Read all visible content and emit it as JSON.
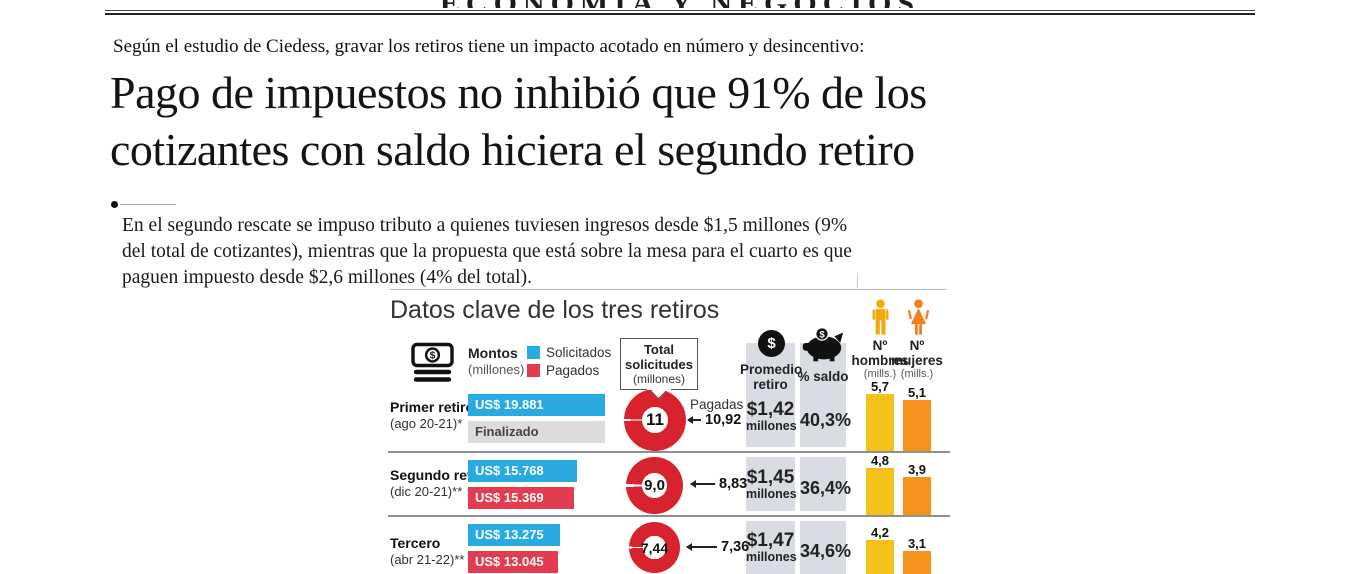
{
  "masthead": {
    "section_title": "ECONOMÍA Y NEGOCIOS"
  },
  "article": {
    "kicker": "Según el estudio de Ciedess, gravar los retiros tiene un impacto acotado en número y desincentivo:",
    "headline_line1": "Pago de impuestos no inhibió que 91% de los",
    "headline_line2": "cotizantes con saldo hiciera el segundo retiro",
    "deck": "En el segundo rescate se impuso tributo a quienes tuviesen ingresos desde $1,5 millones (9% del total de cotizantes), mientras que la propuesta que está sobre la mesa para el cuarto es que paguen impuesto desde $2,6 millones (4% del total)."
  },
  "infographic": {
    "title": "Datos clave de los tres retiros",
    "legend": {
      "montos_label": "Montos",
      "montos_sub": "(millones)",
      "solicitados": "Solicitados",
      "pagados": "Pagados"
    },
    "callout": {
      "line1": "Total",
      "line2": "solicitudes",
      "line3": "(millones)"
    },
    "columns": {
      "promedio_line1": "Promedio",
      "promedio_line2": "retiro",
      "saldo": "% saldo",
      "hombres_no": "Nº",
      "hombres": "hombres",
      "hombres_sub": "(mills.)",
      "mujeres_no": "Nº",
      "mujeres": "mujeres",
      "mujeres_sub": "(mills.)"
    },
    "rows": [
      {
        "name": "Primer retiro",
        "period": "(ago 20-21)*",
        "solicitados_label": "US$ 19.881",
        "solicitados_num": 19881,
        "pagados_label": "Finalizado",
        "pagados_num": null,
        "pagados_is_finalizado": true,
        "total_label": "11",
        "total_num": 11,
        "pagadas_caption": "Pagadas",
        "pagadas_label": "10,92",
        "pagadas_num": 10.92,
        "promedio": "$1,42",
        "promedio_sub": "millones",
        "saldo": "40,3%",
        "hombres_label": "5,7",
        "hombres_num": 5.7,
        "mujeres_label": "5,1",
        "mujeres_num": 5.1
      },
      {
        "name": "Segundo retiro",
        "period": "(dic 20-21)**",
        "solicitados_label": "US$ 15.768",
        "solicitados_num": 15768,
        "pagados_label": "US$ 15.369",
        "pagados_num": 15369,
        "pagados_is_finalizado": false,
        "total_label": "9,0",
        "total_num": 9.0,
        "pagadas_caption": "",
        "pagadas_label": "8,83",
        "pagadas_num": 8.83,
        "promedio": "$1,45",
        "promedio_sub": "millones",
        "saldo": "36,4%",
        "hombres_label": "4,8",
        "hombres_num": 4.8,
        "mujeres_label": "3,9",
        "mujeres_num": 3.9
      },
      {
        "name": "Tercero",
        "period": "(abr 21-22)**",
        "solicitados_label": "US$ 13.275",
        "solicitados_num": 13275,
        "pagados_label": "US$ 13.045",
        "pagados_num": 13045,
        "pagados_is_finalizado": false,
        "total_label": "7,44",
        "total_num": 7.44,
        "pagadas_caption": "",
        "pagadas_label": "7,36",
        "pagadas_num": 7.36,
        "promedio": "$1,47",
        "promedio_sub": "millones",
        "saldo": "34,6%",
        "hombres_label": "4,2",
        "hombres_num": 4.2,
        "mujeres_label": "3,1",
        "mujeres_num": 3.1
      }
    ],
    "colors": {
      "solicitados": "#29abe2",
      "pagados": "#e23c4e",
      "donut": "#d8232f",
      "hombres_bar": "#f3c117",
      "mujeres_bar": "#f6921e",
      "hombres_icon": "#f2a90d",
      "mujeres_icon": "#f57f1e",
      "band": "#d9dde3"
    }
  },
  "chart_data": {
    "type": "table",
    "title": "Datos clave de los tres retiros",
    "categories": [
      "Primer retiro (ago 20-21)*",
      "Segundo retiro (dic 20-21)**",
      "Tercero (abr 21-22)**"
    ],
    "series": [
      {
        "name": "Montos solicitados (US$ millones)",
        "values": [
          19881,
          15768,
          13275
        ]
      },
      {
        "name": "Montos pagados (US$ millones)",
        "values": [
          null,
          15369,
          13045
        ],
        "notes": [
          "Finalizado",
          null,
          null
        ]
      },
      {
        "name": "Total solicitudes (millones)",
        "values": [
          11,
          9.0,
          7.44
        ]
      },
      {
        "name": "Solicitudes pagadas (millones)",
        "values": [
          10.92,
          8.83,
          7.36
        ]
      },
      {
        "name": "Promedio retiro ($ millones)",
        "values": [
          1.42,
          1.45,
          1.47
        ]
      },
      {
        "name": "% saldo",
        "values": [
          40.3,
          36.4,
          34.6
        ]
      },
      {
        "name": "Nº hombres (mills.)",
        "values": [
          5.7,
          4.8,
          4.2
        ]
      },
      {
        "name": "Nº mujeres (mills.)",
        "values": [
          5.1,
          3.9,
          3.1
        ]
      }
    ],
    "legend_position": "top",
    "grid": false
  }
}
